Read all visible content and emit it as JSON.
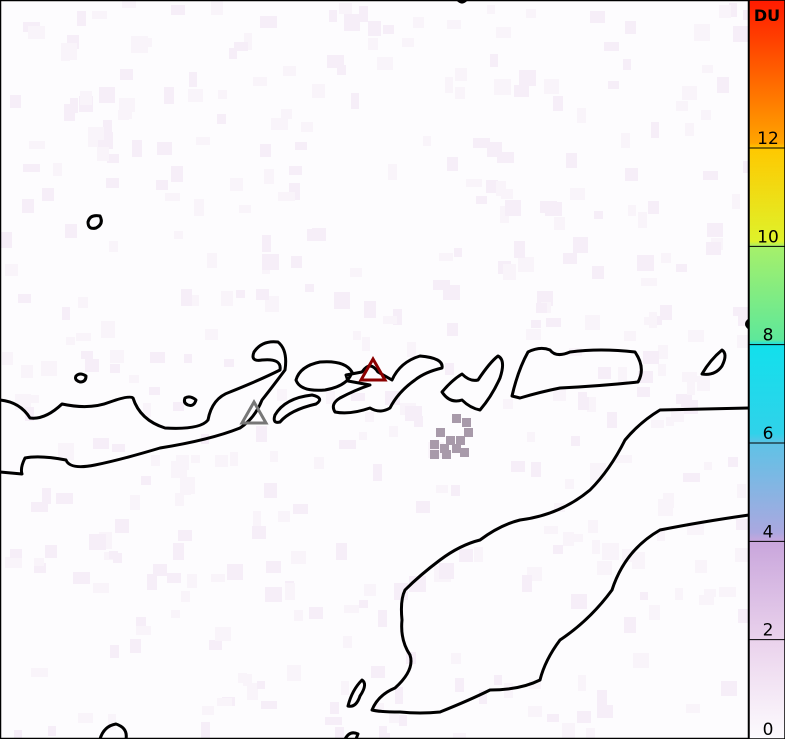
{
  "colorbar": {
    "unit": "DU",
    "ticks": [
      {
        "value": 0,
        "label": "0"
      },
      {
        "value": 2,
        "label": "2"
      },
      {
        "value": 4,
        "label": "4"
      },
      {
        "value": 6,
        "label": "6"
      },
      {
        "value": 8,
        "label": "8"
      },
      {
        "value": 10,
        "label": "10"
      },
      {
        "value": 12,
        "label": "12"
      }
    ],
    "range": [
      0,
      15
    ],
    "stops": [
      {
        "value": 0,
        "color": "#fdfbfe"
      },
      {
        "value": 2,
        "color": "#ead2ec"
      },
      {
        "value": 4,
        "color": "#c9a6dc"
      },
      {
        "value": 4.2,
        "color": "#aaa8e0"
      },
      {
        "value": 6,
        "color": "#5fc2e6"
      },
      {
        "value": 6.2,
        "color": "#30d2ea"
      },
      {
        "value": 8,
        "color": "#12e0ec"
      },
      {
        "value": 8.1,
        "color": "#5ee89a"
      },
      {
        "value": 10,
        "color": "#a6f06a"
      },
      {
        "value": 10.1,
        "color": "#dff22a"
      },
      {
        "value": 12,
        "color": "#ffc800"
      },
      {
        "value": 12.1,
        "color": "#ffa400"
      },
      {
        "value": 15,
        "color": "#ff1a00"
      }
    ]
  },
  "markers": [
    {
      "name": "volcano-active",
      "color": "#8b0000"
    },
    {
      "name": "volcano",
      "color": "#777777"
    }
  ],
  "colors": {
    "coastline": "#000000",
    "plume": "#a89aaa"
  }
}
